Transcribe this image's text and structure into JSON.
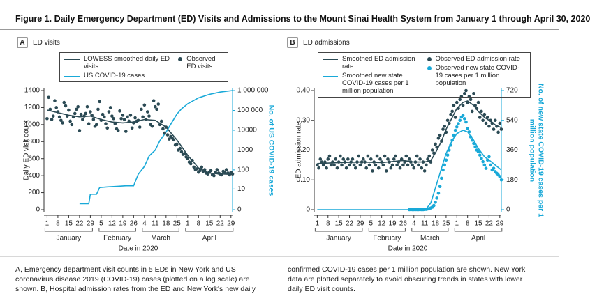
{
  "title": "Figure 1. Daily Emergency Department (ED) Visits and Admissions to the Mount Sinai Health System from January 1 through April 30, 2020",
  "caption": "A, Emergency department visit counts in 5 EDs in New York and US coronavirus disease 2019 (COVID-19) cases (plotted on a log scale) are shown. B, Hospital admission rates from the ED and New York's new daily confirmed COVID-19 cases per 1 million population are shown. New York data are plotted separately to avoid obscuring trends in states with lower daily ED visit counts.",
  "chart_data": [
    {
      "type": "line",
      "panel": "A",
      "title": "ED visits",
      "xlabel": "Date in 2020",
      "ylabel": "Daily ED visit count",
      "y2label": "No. of US COVID-19 cases",
      "months": [
        "January",
        "February",
        "March",
        "April"
      ],
      "xlim": [
        -1,
        121
      ],
      "xticks": [
        {
          "value": 1,
          "label": "1"
        },
        {
          "value": 8,
          "label": "8"
        },
        {
          "value": 15,
          "label": "15"
        },
        {
          "value": 22,
          "label": "22"
        },
        {
          "value": 29,
          "label": "29"
        },
        {
          "value": 36,
          "label": "5"
        },
        {
          "value": 43,
          "label": "12"
        },
        {
          "value": 50,
          "label": "19"
        },
        {
          "value": 57,
          "label": "26"
        },
        {
          "value": 64,
          "label": "4"
        },
        {
          "value": 71,
          "label": "11"
        },
        {
          "value": 78,
          "label": "18"
        },
        {
          "value": 85,
          "label": "25"
        },
        {
          "value": 92,
          "label": "1"
        },
        {
          "value": 99,
          "label": "8"
        },
        {
          "value": 106,
          "label": "15"
        },
        {
          "value": 113,
          "label": "22"
        },
        {
          "value": 120,
          "label": "29"
        }
      ],
      "ylim": [
        0,
        1400
      ],
      "yticks": [
        0,
        200,
        400,
        600,
        800,
        1000,
        1200,
        1400
      ],
      "y2lim": [
        0,
        1000000
      ],
      "y2scale": "log",
      "y2ticks": [
        0,
        10,
        100,
        1000,
        10000,
        {
          "value": 100000,
          "label": "100 000"
        },
        {
          "value": 1000000,
          "label": "1 000 000"
        }
      ],
      "x": [
        1,
        2,
        3,
        4,
        5,
        6,
        7,
        8,
        9,
        10,
        11,
        12,
        13,
        14,
        15,
        16,
        17,
        18,
        19,
        20,
        21,
        22,
        23,
        24,
        25,
        26,
        27,
        28,
        29,
        30,
        31,
        32,
        33,
        34,
        35,
        36,
        37,
        38,
        39,
        40,
        41,
        42,
        43,
        44,
        45,
        46,
        47,
        48,
        49,
        50,
        51,
        52,
        53,
        54,
        55,
        56,
        57,
        58,
        59,
        60,
        61,
        62,
        63,
        64,
        65,
        66,
        67,
        68,
        69,
        70,
        71,
        72,
        73,
        74,
        75,
        76,
        77,
        78,
        79,
        80,
        81,
        82,
        83,
        84,
        85,
        86,
        87,
        88,
        89,
        90,
        91,
        92,
        93,
        94,
        95,
        96,
        97,
        98,
        99,
        100,
        101,
        102,
        103,
        104,
        105,
        106,
        107,
        108,
        109,
        110,
        111,
        112,
        113,
        114,
        115,
        116,
        117,
        118,
        119,
        120,
        121
      ],
      "series": [
        {
          "name": "LOWESS smoothed daily ED visits",
          "type": "line",
          "color": "#2b4a54",
          "x": [
            1,
            8,
            15,
            22,
            29,
            36,
            43,
            50,
            57,
            64,
            71,
            78,
            85,
            92,
            99,
            106,
            113,
            121
          ],
          "values": [
            1170,
            1140,
            1110,
            1090,
            1100,
            1060,
            1030,
            1020,
            1030,
            1060,
            1050,
            970,
            820,
            640,
            490,
            430,
            420,
            415
          ]
        },
        {
          "name": "US COVID-19 cases",
          "type": "line",
          "color": "#19a9d8",
          "axis": "y2",
          "x": [
            22,
            28,
            29,
            33,
            35,
            40,
            47,
            52,
            57,
            60,
            64,
            67,
            71,
            74,
            78,
            81,
            85,
            88,
            92,
            99,
            106,
            113,
            121
          ],
          "values": [
            1,
            1,
            5,
            5,
            12,
            13,
            14,
            15,
            15,
            60,
            150,
            500,
            1000,
            3000,
            8000,
            20000,
            65000,
            120000,
            215000,
            430000,
            640000,
            840000,
            1000000
          ]
        },
        {
          "name": "Observed ED visits",
          "type": "scatter",
          "color": "#2b4a54",
          "values": [
            1070,
            1320,
            1180,
            1060,
            1100,
            1280,
            1200,
            1150,
            1090,
            1050,
            1020,
            1260,
            1220,
            1100,
            1170,
            1040,
            1000,
            1090,
            1130,
            1180,
            1210,
            930,
            1120,
            1060,
            1100,
            1130,
            1210,
            1010,
            1150,
            1110,
            1060,
            980,
            1000,
            1180,
            1270,
            1050,
            1120,
            1090,
            1010,
            960,
            1150,
            1200,
            1100,
            1070,
            1010,
            950,
            930,
            1160,
            1070,
            1110,
            1060,
            920,
            1090,
            1040,
            1110,
            960,
            1020,
            1080,
            1040,
            1050,
            970,
            1180,
            1090,
            1230,
            1060,
            1150,
            1100,
            1000,
            980,
            1280,
            1210,
            1180,
            1240,
            1000,
            1040,
            950,
            900,
            970,
            880,
            830,
            860,
            840,
            820,
            760,
            770,
            700,
            720,
            680,
            650,
            660,
            620,
            600,
            560,
            540,
            580,
            500,
            470,
            480,
            440,
            460,
            500,
            450,
            470,
            430,
            420,
            440,
            460,
            410,
            400,
            440,
            470,
            430,
            420,
            410,
            450,
            440,
            470,
            430,
            410,
            440,
            420
          ]
        }
      ]
    },
    {
      "type": "line",
      "panel": "B",
      "title": "ED admissions",
      "xlabel": "Date in 2020",
      "ylabel": "ED admission rate",
      "y2label": "No. of new state COVID-19 cases per 1 million population",
      "months": [
        "January",
        "February",
        "March",
        "April"
      ],
      "xlim": [
        -1,
        121
      ],
      "xticks": [
        {
          "value": 1,
          "label": "1"
        },
        {
          "value": 8,
          "label": "8"
        },
        {
          "value": 15,
          "label": "15"
        },
        {
          "value": 22,
          "label": "22"
        },
        {
          "value": 29,
          "label": "29"
        },
        {
          "value": 36,
          "label": "5"
        },
        {
          "value": 43,
          "label": "12"
        },
        {
          "value": 50,
          "label": "19"
        },
        {
          "value": 57,
          "label": "26"
        },
        {
          "value": 64,
          "label": "4"
        },
        {
          "value": 71,
          "label": "11"
        },
        {
          "value": 78,
          "label": "18"
        },
        {
          "value": 85,
          "label": "25"
        },
        {
          "value": 92,
          "label": "1"
        },
        {
          "value": 99,
          "label": "8"
        },
        {
          "value": 106,
          "label": "15"
        },
        {
          "value": 113,
          "label": "22"
        },
        {
          "value": 120,
          "label": "29"
        }
      ],
      "ylim": [
        0,
        0.4
      ],
      "yticks": [
        0,
        {
          "value": 0.1,
          "label": "0.10"
        },
        {
          "value": 0.2,
          "label": "0.20"
        },
        {
          "value": 0.3,
          "label": "0.30"
        },
        {
          "value": 0.4,
          "label": "0.40"
        }
      ],
      "y2lim": [
        0,
        720
      ],
      "y2ticks": [
        0,
        180,
        360,
        540,
        720
      ],
      "x": [
        1,
        2,
        3,
        4,
        5,
        6,
        7,
        8,
        9,
        10,
        11,
        12,
        13,
        14,
        15,
        16,
        17,
        18,
        19,
        20,
        21,
        22,
        23,
        24,
        25,
        26,
        27,
        28,
        29,
        30,
        31,
        32,
        33,
        34,
        35,
        36,
        37,
        38,
        39,
        40,
        41,
        42,
        43,
        44,
        45,
        46,
        47,
        48,
        49,
        50,
        51,
        52,
        53,
        54,
        55,
        56,
        57,
        58,
        59,
        60,
        61,
        62,
        63,
        64,
        65,
        66,
        67,
        68,
        69,
        70,
        71,
        72,
        73,
        74,
        75,
        76,
        77,
        78,
        79,
        80,
        81,
        82,
        83,
        84,
        85,
        86,
        87,
        88,
        89,
        90,
        91,
        92,
        93,
        94,
        95,
        96,
        97,
        98,
        99,
        100,
        101,
        102,
        103,
        104,
        105,
        106,
        107,
        108,
        109,
        110,
        111,
        112,
        113,
        114,
        115,
        116,
        117,
        118,
        119,
        120,
        121
      ],
      "series": [
        {
          "name": "Smoothed ED admission rate",
          "type": "line",
          "color": "#2b4a54",
          "x": [
            1,
            15,
            29,
            43,
            57,
            64,
            71,
            75,
            78,
            82,
            85,
            89,
            92,
            96,
            99,
            103,
            106,
            110,
            113,
            117,
            121
          ],
          "values": [
            0.155,
            0.158,
            0.16,
            0.158,
            0.165,
            0.16,
            0.16,
            0.165,
            0.19,
            0.23,
            0.27,
            0.31,
            0.34,
            0.36,
            0.365,
            0.35,
            0.33,
            0.31,
            0.3,
            0.285,
            0.275
          ]
        },
        {
          "name": "Smoothed new state COVID-19 cases per 1 million population",
          "type": "line",
          "color": "#19a9d8",
          "axis": "y2",
          "x": [
            1,
            70,
            72,
            75,
            78,
            82,
            85,
            89,
            92,
            96,
            99,
            103,
            106,
            110,
            113,
            117,
            121
          ],
          "values": [
            0,
            0,
            5,
            40,
            130,
            250,
            340,
            420,
            460,
            480,
            470,
            420,
            370,
            320,
            300,
            270,
            240
          ]
        },
        {
          "name": "Observed ED admission rate",
          "type": "scatter",
          "color": "#2b4a54",
          "values": [
            0.15,
            0.14,
            0.17,
            0.16,
            0.15,
            0.16,
            0.14,
            0.17,
            0.18,
            0.15,
            0.16,
            0.15,
            0.17,
            0.14,
            0.16,
            0.18,
            0.15,
            0.17,
            0.16,
            0.14,
            0.17,
            0.15,
            0.16,
            0.17,
            0.15,
            0.14,
            0.16,
            0.18,
            0.15,
            0.16,
            0.17,
            0.16,
            0.14,
            0.18,
            0.15,
            0.17,
            0.13,
            0.16,
            0.15,
            0.18,
            0.14,
            0.17,
            0.16,
            0.15,
            0.18,
            0.13,
            0.17,
            0.16,
            0.14,
            0.15,
            0.17,
            0.18,
            0.15,
            0.16,
            0.14,
            0.17,
            0.15,
            0.16,
            0.18,
            0.15,
            0.17,
            0.16,
            0.15,
            0.14,
            0.16,
            0.18,
            0.15,
            0.17,
            0.14,
            0.16,
            0.13,
            0.15,
            0.17,
            0.18,
            0.16,
            0.2,
            0.19,
            0.22,
            0.21,
            0.24,
            0.25,
            0.23,
            0.27,
            0.28,
            0.26,
            0.3,
            0.29,
            0.32,
            0.33,
            0.35,
            0.31,
            0.36,
            0.34,
            0.37,
            0.38,
            0.35,
            0.39,
            0.4,
            0.36,
            0.38,
            0.37,
            0.33,
            0.39,
            0.35,
            0.34,
            0.36,
            0.31,
            0.33,
            0.3,
            0.32,
            0.29,
            0.31,
            0.28,
            0.3,
            0.29,
            0.27,
            0.3,
            0.28,
            0.26,
            0.29,
            0.27
          ]
        },
        {
          "name": "Observed new state COVID-19 cases per 1 million population",
          "type": "scatter",
          "color": "#19a9d8",
          "axis": "y2",
          "x": [
            61,
            62,
            63,
            64,
            65,
            66,
            67,
            68,
            69,
            70,
            71,
            72,
            73,
            74,
            75,
            76,
            77,
            78,
            79,
            80,
            81,
            82,
            83,
            84,
            85,
            86,
            87,
            88,
            89,
            90,
            91,
            92,
            93,
            94,
            95,
            96,
            97,
            98,
            99,
            100,
            101,
            102,
            103,
            104,
            105,
            106,
            107,
            108,
            109,
            110,
            111,
            112,
            113,
            114,
            115,
            116,
            117,
            118,
            119,
            120,
            121
          ],
          "values": [
            0,
            0,
            0,
            0,
            0,
            0,
            0,
            0,
            0,
            0,
            1,
            2,
            4,
            6,
            10,
            15,
            25,
            45,
            70,
            100,
            140,
            190,
            240,
            270,
            300,
            330,
            360,
            390,
            420,
            450,
            480,
            500,
            520,
            540,
            560,
            570,
            550,
            530,
            490,
            470,
            440,
            420,
            400,
            380,
            360,
            350,
            330,
            310,
            290,
            270,
            250,
            300,
            320,
            270,
            240,
            250,
            230,
            220,
            210,
            200,
            180
          ]
        }
      ]
    }
  ]
}
